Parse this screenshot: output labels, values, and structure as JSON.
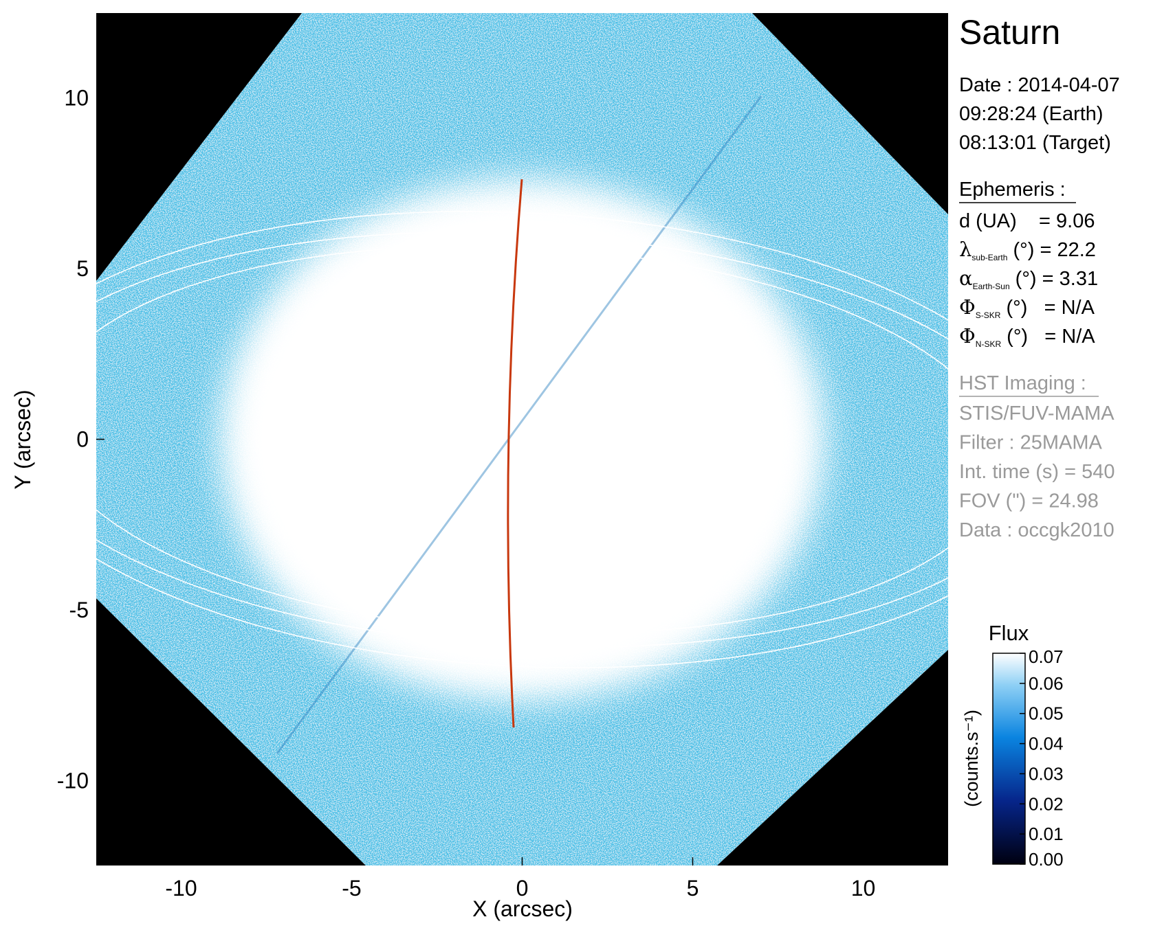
{
  "chart_data": {
    "type": "image",
    "title": "Saturn",
    "x_label": "X (arcsec)",
    "y_label": "Y (arcsec)",
    "xlim": [
      -12.49,
      12.49
    ],
    "ylim": [
      -12.49,
      12.49
    ],
    "xticks": [
      -10,
      -5,
      0,
      5,
      10
    ],
    "yticks": [
      -10,
      -5,
      0,
      5,
      10
    ],
    "info": {
      "date": "Date : 2014-04-07",
      "time_earth": "09:28:24 (Earth)",
      "time_target": "08:13:01 (Target)",
      "ephemeris_title": "Ephemeris :",
      "ephemeris": [
        {
          "text": "d (UA)    = 9.06"
        },
        {
          "symbol": "λ",
          "subscript": "sub-Earth",
          "text": " (°) = 22.2"
        },
        {
          "symbol": "α",
          "subscript": "Earth-Sun",
          "text": " (°) = 3.31"
        },
        {
          "symbol": "Φ",
          "subscript": "S-SKR",
          "text": " (°)   = N/A"
        },
        {
          "symbol": "Φ",
          "subscript": "N-SKR",
          "text": " (°)   = N/A"
        }
      ],
      "imaging_title": "HST Imaging :",
      "imaging": [
        "STIS/FUV-MAMA",
        "Filter : 25MAMA",
        "Int. time (s) = 540",
        "FOV (\") = 24.98",
        "Data : occgk2010"
      ]
    },
    "colorbar": {
      "title": "Flux",
      "label": "(counts.s⁻¹)",
      "lim": [
        0,
        0.07
      ],
      "ticks": [
        {
          "value": 0,
          "label": "0.00"
        },
        0.01,
        0.02,
        0.03,
        0.04,
        0.05,
        0.06,
        0.07
      ]
    }
  }
}
